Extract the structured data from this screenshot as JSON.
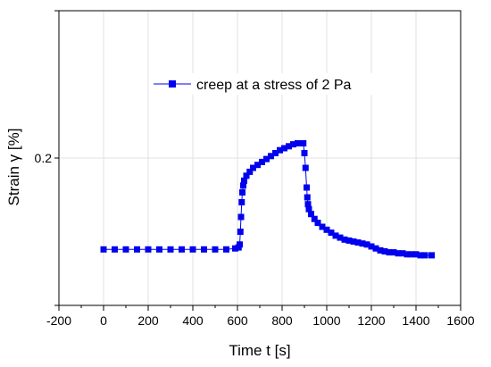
{
  "chart_data": {
    "type": "scatter",
    "xlabel": "Time t [s]",
    "ylabel": "Strain γ [%]",
    "xlim": [
      -200,
      1600
    ],
    "ylim": [
      0.05,
      0.35
    ],
    "x_ticks": [
      -200,
      0,
      200,
      400,
      600,
      800,
      1000,
      1200,
      1400,
      1600
    ],
    "y_ticks": [
      0.2
    ],
    "grid": true,
    "legend_position": "top-center",
    "colors": {
      "series": "#0000ee",
      "grid": "#e0e0e0",
      "axis": "#000000"
    },
    "series": [
      {
        "name": "creep at a stress of 2 Pa",
        "marker": "square",
        "points": [
          [
            0,
            0.107
          ],
          [
            50,
            0.107
          ],
          [
            100,
            0.107
          ],
          [
            150,
            0.107
          ],
          [
            200,
            0.107
          ],
          [
            250,
            0.107
          ],
          [
            300,
            0.107
          ],
          [
            350,
            0.107
          ],
          [
            400,
            0.107
          ],
          [
            450,
            0.107
          ],
          [
            500,
            0.107
          ],
          [
            550,
            0.107
          ],
          [
            590,
            0.108
          ],
          [
            605,
            0.109
          ],
          [
            610,
            0.112
          ],
          [
            613,
            0.125
          ],
          [
            616,
            0.14
          ],
          [
            619,
            0.155
          ],
          [
            622,
            0.165
          ],
          [
            626,
            0.172
          ],
          [
            630,
            0.177
          ],
          [
            640,
            0.182
          ],
          [
            655,
            0.186
          ],
          [
            670,
            0.19
          ],
          [
            690,
            0.193
          ],
          [
            710,
            0.196
          ],
          [
            730,
            0.199
          ],
          [
            750,
            0.202
          ],
          [
            770,
            0.205
          ],
          [
            790,
            0.208
          ],
          [
            810,
            0.21
          ],
          [
            830,
            0.212
          ],
          [
            850,
            0.214
          ],
          [
            870,
            0.215
          ],
          [
            895,
            0.215
          ],
          [
            900,
            0.205
          ],
          [
            905,
            0.19
          ],
          [
            910,
            0.17
          ],
          [
            913,
            0.16
          ],
          [
            916,
            0.153
          ],
          [
            920,
            0.148
          ],
          [
            930,
            0.143
          ],
          [
            945,
            0.138
          ],
          [
            960,
            0.134
          ],
          [
            980,
            0.13
          ],
          [
            1000,
            0.127
          ],
          [
            1020,
            0.124
          ],
          [
            1040,
            0.121
          ],
          [
            1060,
            0.119
          ],
          [
            1080,
            0.117
          ],
          [
            1100,
            0.116
          ],
          [
            1120,
            0.115
          ],
          [
            1140,
            0.114
          ],
          [
            1160,
            0.113
          ],
          [
            1180,
            0.112
          ],
          [
            1200,
            0.11
          ],
          [
            1220,
            0.108
          ],
          [
            1240,
            0.106
          ],
          [
            1260,
            0.105
          ],
          [
            1280,
            0.104
          ],
          [
            1300,
            0.104
          ],
          [
            1320,
            0.103
          ],
          [
            1340,
            0.103
          ],
          [
            1360,
            0.102
          ],
          [
            1380,
            0.102
          ],
          [
            1400,
            0.102
          ],
          [
            1420,
            0.101
          ],
          [
            1440,
            0.101
          ],
          [
            1470,
            0.101
          ]
        ]
      }
    ]
  }
}
